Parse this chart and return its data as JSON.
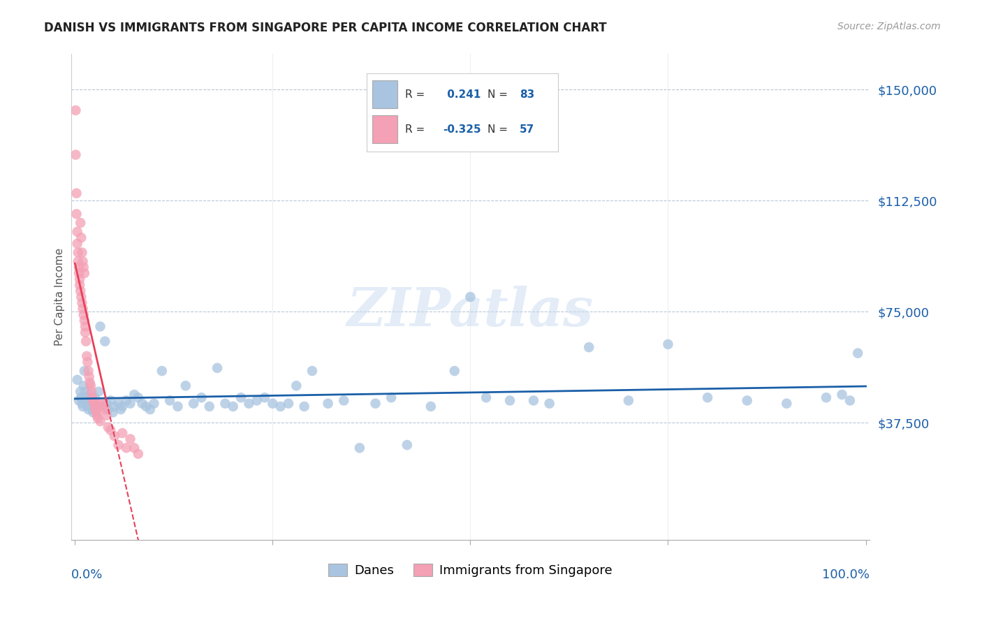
{
  "title": "DANISH VS IMMIGRANTS FROM SINGAPORE PER CAPITA INCOME CORRELATION CHART",
  "source": "Source: ZipAtlas.com",
  "ylabel": "Per Capita Income",
  "yticks": [
    0,
    37500,
    75000,
    112500,
    150000
  ],
  "danes_R": "0.241",
  "danes_N": "83",
  "immigrants_R": "-0.325",
  "immigrants_N": "57",
  "danes_color": "#a8c4e0",
  "immigrants_color": "#f4a0b5",
  "danes_line_color": "#1a5fa8",
  "immigrants_line_color": "#e8405a",
  "watermark": "ZIPatlas",
  "background_color": "#ffffff",
  "danes_x": [
    0.003,
    0.005,
    0.007,
    0.008,
    0.009,
    0.01,
    0.011,
    0.012,
    0.013,
    0.014,
    0.015,
    0.016,
    0.017,
    0.018,
    0.019,
    0.02,
    0.022,
    0.023,
    0.025,
    0.027,
    0.03,
    0.032,
    0.035,
    0.038,
    0.04,
    0.042,
    0.045,
    0.048,
    0.05,
    0.055,
    0.058,
    0.06,
    0.065,
    0.07,
    0.075,
    0.08,
    0.085,
    0.09,
    0.095,
    0.1,
    0.11,
    0.12,
    0.13,
    0.14,
    0.15,
    0.16,
    0.17,
    0.18,
    0.19,
    0.2,
    0.21,
    0.22,
    0.23,
    0.24,
    0.25,
    0.26,
    0.27,
    0.28,
    0.29,
    0.3,
    0.32,
    0.34,
    0.36,
    0.38,
    0.4,
    0.42,
    0.45,
    0.48,
    0.5,
    0.52,
    0.55,
    0.58,
    0.6,
    0.65,
    0.7,
    0.75,
    0.8,
    0.85,
    0.9,
    0.95,
    0.97,
    0.98,
    0.99
  ],
  "danes_y": [
    52000,
    45000,
    48000,
    46000,
    44000,
    43000,
    50000,
    55000,
    48000,
    46000,
    44000,
    43000,
    42000,
    45000,
    47000,
    44000,
    42000,
    41000,
    46000,
    43000,
    48000,
    70000,
    43000,
    65000,
    44000,
    42000,
    45000,
    41000,
    43000,
    44000,
    42000,
    43000,
    45000,
    44000,
    47000,
    46000,
    44000,
    43000,
    42000,
    44000,
    55000,
    45000,
    43000,
    50000,
    44000,
    46000,
    43000,
    56000,
    44000,
    43000,
    46000,
    44000,
    45000,
    46000,
    44000,
    43000,
    44000,
    50000,
    43000,
    55000,
    44000,
    45000,
    29000,
    44000,
    46000,
    30000,
    43000,
    55000,
    80000,
    46000,
    45000,
    45000,
    44000,
    63000,
    45000,
    64000,
    46000,
    45000,
    44000,
    46000,
    47000,
    45000,
    61000
  ],
  "immigrants_x": [
    0.001,
    0.001,
    0.002,
    0.002,
    0.003,
    0.003,
    0.004,
    0.004,
    0.005,
    0.005,
    0.006,
    0.006,
    0.007,
    0.007,
    0.008,
    0.008,
    0.009,
    0.009,
    0.01,
    0.01,
    0.011,
    0.011,
    0.012,
    0.012,
    0.013,
    0.013,
    0.014,
    0.015,
    0.016,
    0.017,
    0.018,
    0.019,
    0.02,
    0.021,
    0.022,
    0.023,
    0.024,
    0.025,
    0.026,
    0.027,
    0.028,
    0.029,
    0.03,
    0.032,
    0.034,
    0.036,
    0.038,
    0.04,
    0.042,
    0.045,
    0.05,
    0.055,
    0.06,
    0.065,
    0.07,
    0.075,
    0.08
  ],
  "immigrants_y": [
    143000,
    128000,
    115000,
    108000,
    102000,
    98000,
    95000,
    92000,
    90000,
    88000,
    86000,
    84000,
    82000,
    105000,
    80000,
    100000,
    78000,
    95000,
    76000,
    92000,
    74000,
    90000,
    72000,
    88000,
    70000,
    68000,
    65000,
    60000,
    58000,
    55000,
    53000,
    51000,
    50000,
    48000,
    46000,
    45000,
    44000,
    43000,
    42000,
    41000,
    40000,
    39000,
    44000,
    38000,
    44000,
    43000,
    42000,
    40000,
    36000,
    35000,
    33000,
    30000,
    34000,
    29000,
    32000,
    29000,
    27000
  ]
}
